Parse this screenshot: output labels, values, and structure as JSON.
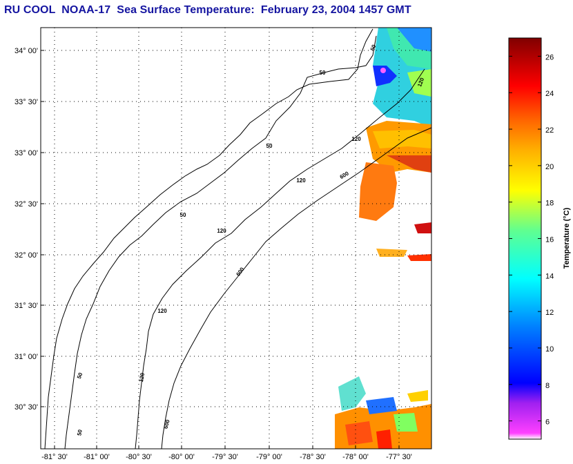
{
  "title": "RU COOL  NOAA-17  Sea Surface Temperature:  February 23, 2004 1457 GMT",
  "map": {
    "lat_labels": [
      "34° 00'",
      "33° 30'",
      "33° 00'",
      "32° 30'",
      "32° 00'",
      "31° 30'",
      "31° 00'",
      "30° 30'"
    ],
    "lon_labels": [
      "-81° 30'",
      "-81° 00'",
      "-80° 30'",
      "-80° 00'",
      "-79° 30'",
      "-79° 00'",
      "-78° 30'",
      "-78° 00'",
      "-77° 30'"
    ],
    "isobath_labels": [
      "50",
      "50",
      "50",
      "50",
      "50",
      "50",
      "120",
      "120",
      "120",
      "120",
      "120",
      "120",
      "600",
      "600",
      "600"
    ]
  },
  "colorbar": {
    "label": "Temperature (°C)",
    "ticks": [
      "26",
      "24",
      "22",
      "20",
      "18",
      "16",
      "14",
      "12",
      "10",
      "8",
      "6"
    ],
    "range": [
      5,
      27
    ]
  }
}
